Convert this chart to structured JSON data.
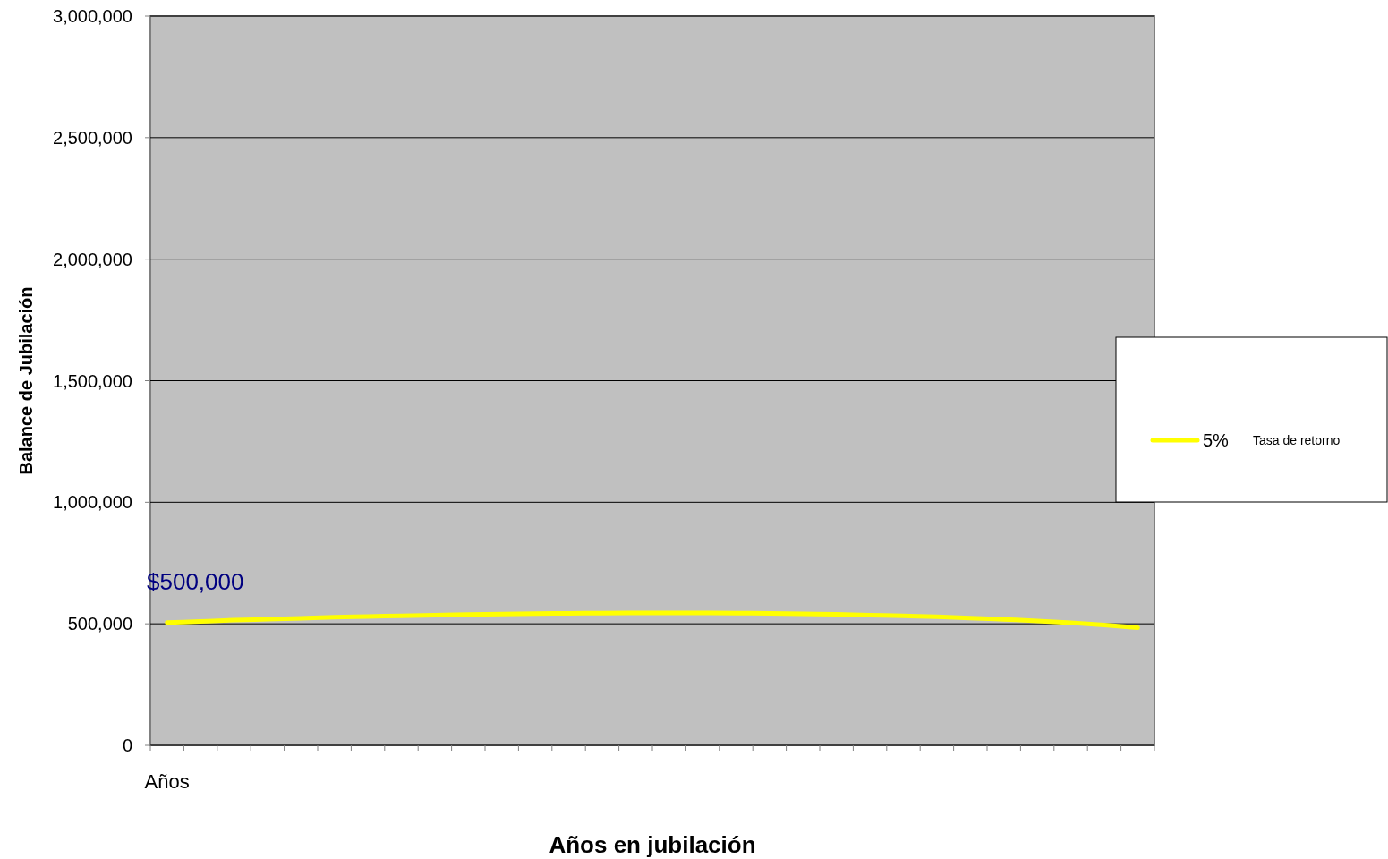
{
  "chart_data": {
    "type": "line",
    "xlabel": "Años en jubilación",
    "ylabel": "Balance de Jubilación",
    "legend_title": "Tasa de retorno",
    "categories": [
      "Años",
      null,
      null,
      null,
      null,
      null,
      null,
      null,
      null,
      null,
      null,
      null,
      null,
      null,
      null,
      null,
      null,
      null,
      null,
      null,
      null,
      null,
      null,
      null,
      null,
      null,
      null,
      null,
      null,
      null
    ],
    "series": [
      {
        "name": "5%",
        "color": "#ffff00",
        "values": [
          505000,
          510000,
          515000,
          519000,
          523000,
          527000,
          530000,
          533000,
          536000,
          538000,
          540000,
          542000,
          543000,
          544000,
          545000,
          545000,
          545000,
          544000,
          543000,
          541000,
          539000,
          536000,
          533000,
          529000,
          524000,
          518000,
          512000,
          504000,
          495000,
          484000
        ]
      }
    ],
    "ylim": [
      0,
      3000000
    ],
    "yticks": [
      {
        "value": 0,
        "label": "0"
      },
      {
        "value": 500000,
        "label": "500,000"
      },
      {
        "value": 1000000,
        "label": "1,000,000"
      },
      {
        "value": 1500000,
        "label": "1,500,000"
      },
      {
        "value": 2000000,
        "label": "2,000,000"
      },
      {
        "value": 2500000,
        "label": "2,500,000"
      },
      {
        "value": 3000000,
        "label": "3,000,000"
      }
    ],
    "grid": "y",
    "legend": "right",
    "marker": "none",
    "line_style": "solid",
    "annotations": [
      {
        "text": "$500,000",
        "y": 500000
      }
    ]
  }
}
